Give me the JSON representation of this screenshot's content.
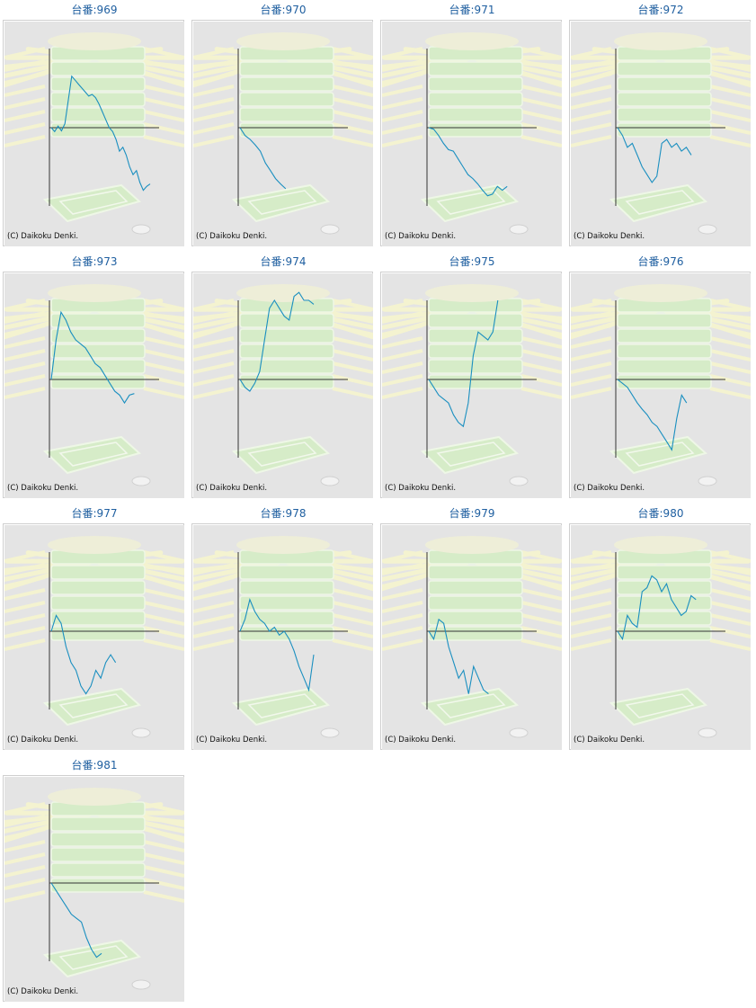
{
  "copyright": "(C) Daikoku Denki.",
  "colors": {
    "line": "#1a8fc0",
    "title": "#1f5fa0",
    "panel_bg": "#e4e4e4",
    "axis": "#333333"
  },
  "chart_data": [
    {
      "type": "line",
      "title": "台番:969",
      "values": [
        0,
        -0.05,
        0.02,
        -0.04,
        0.05,
        0.35,
        0.65,
        0.6,
        0.55,
        0.5,
        0.45,
        0.4,
        0.42,
        0.38,
        0.3,
        0.2,
        0.1,
        0.0,
        -0.05,
        -0.15,
        -0.3,
        -0.25,
        -0.35,
        -0.5,
        -0.6,
        -0.55,
        -0.7,
        -0.8,
        -0.75,
        -0.72
      ]
    },
    {
      "type": "line",
      "title": "台番:970",
      "values": [
        0,
        -0.1,
        -0.15,
        -0.22,
        -0.3,
        -0.45,
        -0.55,
        -0.65,
        -0.72,
        -0.78
      ]
    },
    {
      "type": "line",
      "title": "台番:971",
      "values": [
        0,
        -0.02,
        -0.1,
        -0.2,
        -0.28,
        -0.3,
        -0.4,
        -0.5,
        -0.6,
        -0.65,
        -0.72,
        -0.8,
        -0.87,
        -0.85,
        -0.75,
        -0.8,
        -0.75
      ]
    },
    {
      "type": "line",
      "title": "台番:972",
      "values": [
        0,
        -0.1,
        -0.25,
        -0.2,
        -0.35,
        -0.5,
        -0.6,
        -0.7,
        -0.62,
        -0.2,
        -0.15,
        -0.25,
        -0.2,
        -0.3,
        -0.25,
        -0.35
      ]
    },
    {
      "type": "line",
      "title": "台番:973",
      "values": [
        0,
        0.5,
        0.85,
        0.75,
        0.6,
        0.5,
        0.45,
        0.4,
        0.3,
        0.2,
        0.15,
        0.05,
        -0.05,
        -0.15,
        -0.2,
        -0.3,
        -0.2,
        -0.18
      ]
    },
    {
      "type": "line",
      "title": "台番:974",
      "values": [
        0,
        -0.1,
        -0.15,
        -0.05,
        0.1,
        0.5,
        0.9,
        1.0,
        0.9,
        0.8,
        0.75,
        1.05,
        1.1,
        1.0,
        1.0,
        0.95
      ]
    },
    {
      "type": "line",
      "title": "台番:975",
      "values": [
        0,
        -0.1,
        -0.2,
        -0.25,
        -0.3,
        -0.45,
        -0.55,
        -0.6,
        -0.3,
        0.3,
        0.6,
        0.55,
        0.5,
        0.6,
        1.0
      ]
    },
    {
      "type": "line",
      "title": "台番:976",
      "values": [
        0,
        -0.05,
        -0.1,
        -0.2,
        -0.3,
        -0.38,
        -0.45,
        -0.55,
        -0.6,
        -0.7,
        -0.8,
        -0.9,
        -0.5,
        -0.2,
        -0.3
      ]
    },
    {
      "type": "line",
      "title": "台番:977",
      "values": [
        0,
        0.2,
        0.1,
        -0.2,
        -0.4,
        -0.5,
        -0.7,
        -0.8,
        -0.7,
        -0.5,
        -0.6,
        -0.4,
        -0.3,
        -0.4
      ]
    },
    {
      "type": "line",
      "title": "台番:978",
      "values": [
        0,
        0.15,
        0.4,
        0.25,
        0.15,
        0.1,
        0.0,
        0.05,
        -0.05,
        0.0,
        -0.1,
        -0.25,
        -0.45,
        -0.6,
        -0.75,
        -0.3
      ]
    },
    {
      "type": "line",
      "title": "台番:979",
      "values": [
        0,
        -0.1,
        0.15,
        0.1,
        -0.2,
        -0.4,
        -0.6,
        -0.5,
        -0.8,
        -0.45,
        -0.6,
        -0.75,
        -0.8
      ]
    },
    {
      "type": "line",
      "title": "台番:980",
      "values": [
        0,
        -0.1,
        0.2,
        0.1,
        0.05,
        0.5,
        0.55,
        0.7,
        0.65,
        0.5,
        0.6,
        0.4,
        0.3,
        0.2,
        0.25,
        0.45,
        0.4
      ]
    },
    {
      "type": "line",
      "title": "台番:981",
      "values": [
        0,
        -0.1,
        -0.2,
        -0.3,
        -0.4,
        -0.45,
        -0.5,
        -0.7,
        -0.85,
        -0.95,
        -0.9
      ]
    }
  ]
}
